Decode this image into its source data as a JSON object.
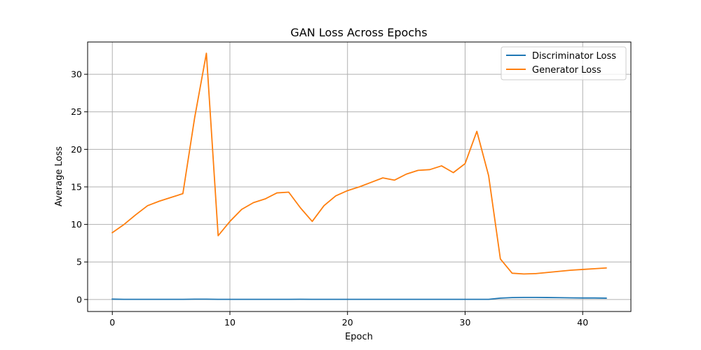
{
  "chart_data": {
    "type": "line",
    "title": "GAN Loss Across Epochs",
    "xlabel": "Epoch",
    "ylabel": "Average Loss",
    "xlim": [
      -2.1,
      44.1
    ],
    "ylim": [
      -1.6,
      34.3
    ],
    "xticks": [
      0,
      10,
      20,
      30,
      40
    ],
    "yticks": [
      0,
      5,
      10,
      15,
      20,
      25,
      30
    ],
    "grid": true,
    "legend_position": "top-right",
    "x": [
      0,
      1,
      2,
      3,
      4,
      5,
      6,
      7,
      8,
      9,
      10,
      11,
      12,
      13,
      14,
      15,
      16,
      17,
      18,
      19,
      20,
      21,
      22,
      23,
      24,
      25,
      26,
      27,
      28,
      29,
      30,
      31,
      32,
      33,
      34,
      35,
      36,
      37,
      38,
      39,
      40,
      41,
      42
    ],
    "series": [
      {
        "name": "Discriminator Loss",
        "color": "#1f77b4",
        "values": [
          0.05,
          0.02,
          0.02,
          0.02,
          0.02,
          0.02,
          0.02,
          0.04,
          0.04,
          0.02,
          0.02,
          0.02,
          0.02,
          0.02,
          0.02,
          0.02,
          0.03,
          0.02,
          0.02,
          0.02,
          0.02,
          0.02,
          0.02,
          0.02,
          0.02,
          0.02,
          0.02,
          0.02,
          0.02,
          0.02,
          0.02,
          0.02,
          0.02,
          0.18,
          0.25,
          0.28,
          0.28,
          0.26,
          0.24,
          0.22,
          0.2,
          0.2,
          0.18
        ]
      },
      {
        "name": "Generator Loss",
        "color": "#ff7f0e",
        "values": [
          8.9,
          10.0,
          11.3,
          12.5,
          13.1,
          13.6,
          14.1,
          24.2,
          32.8,
          8.5,
          10.4,
          12.0,
          12.9,
          13.4,
          14.2,
          14.3,
          12.2,
          10.4,
          12.5,
          13.8,
          14.5,
          15.0,
          15.6,
          16.2,
          15.9,
          16.7,
          17.2,
          17.3,
          17.8,
          16.9,
          18.1,
          22.4,
          16.5,
          5.4,
          3.5,
          3.4,
          3.45,
          3.6,
          3.75,
          3.9,
          4.0,
          4.1,
          4.2
        ]
      }
    ]
  }
}
